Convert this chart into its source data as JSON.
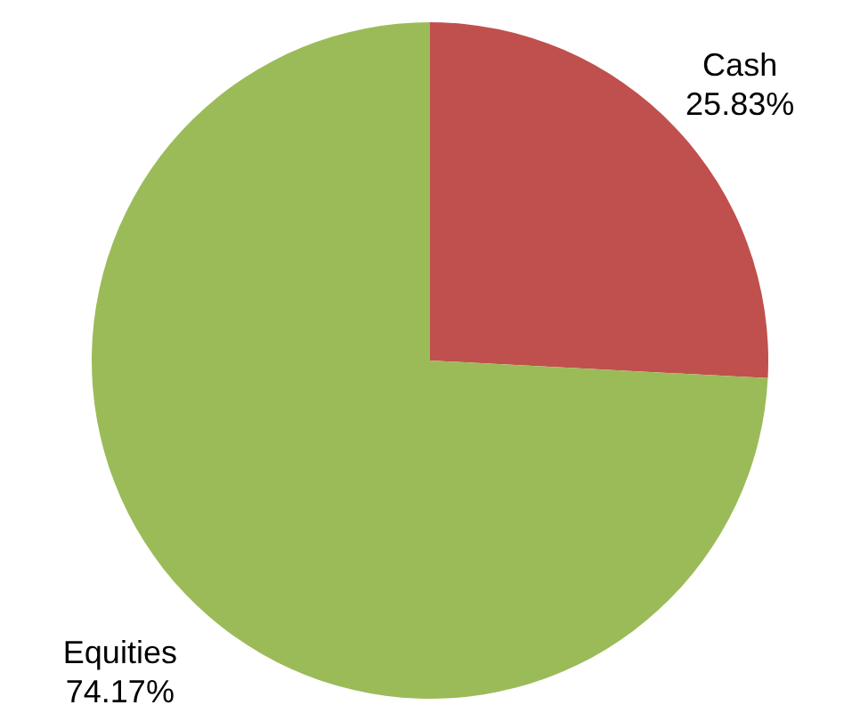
{
  "chart_data": {
    "type": "pie",
    "categories": [
      "Cash",
      "Equities"
    ],
    "values": [
      25.83,
      74.17
    ],
    "value_labels": [
      "25.83%",
      "74.17%"
    ],
    "colors": [
      "#c0504d",
      "#9bbb59"
    ]
  }
}
